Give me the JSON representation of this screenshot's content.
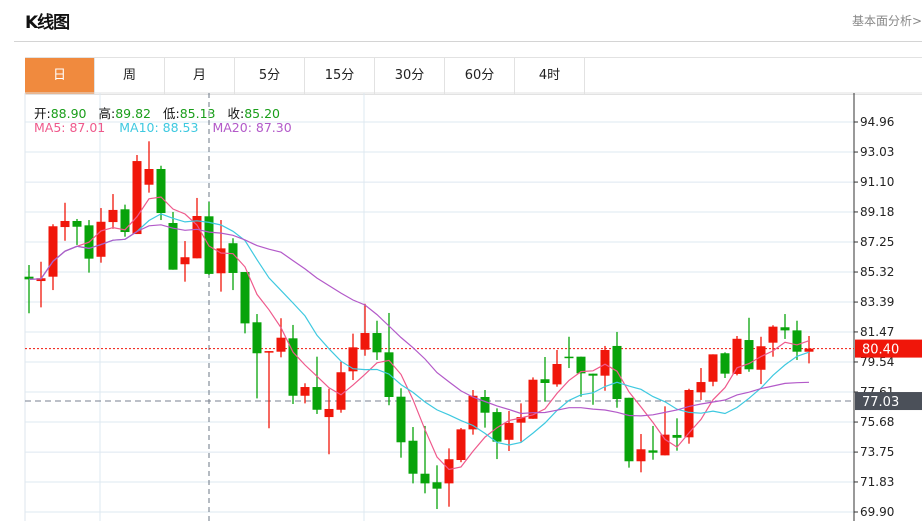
{
  "header": {
    "title": "K线图",
    "fundamental_link": "基本面分析>"
  },
  "tabs": [
    {
      "label": "日",
      "active": true
    },
    {
      "label": "周"
    },
    {
      "label": "月"
    },
    {
      "label": "5分"
    },
    {
      "label": "15分"
    },
    {
      "label": "30分"
    },
    {
      "label": "60分"
    },
    {
      "label": "4时"
    }
  ],
  "info": {
    "open_label": "开:",
    "open": "88.90",
    "high_label": "高:",
    "high": "89.82",
    "low_label": "低:",
    "low": "85.13",
    "close_label": "收:",
    "close": "85.20",
    "ma5": "MA5: 87.01",
    "ma10": "MA10: 88.53",
    "ma20": "MA20: 87.30"
  },
  "colors": {
    "up": "#f0160a",
    "down": "#08a30a",
    "ma5": "#ef5a8c",
    "ma10": "#3fc9e0",
    "ma20": "#b35ac9",
    "last_price": "#f0160a",
    "marker": "#4b5059"
  },
  "chart_data": {
    "type": "candlestick",
    "y_ticks": [
      "94.96",
      "93.03",
      "91.10",
      "89.18",
      "87.25",
      "85.32",
      "83.39",
      "81.47",
      "79.54",
      "77.61",
      "75.68",
      "73.75",
      "71.83",
      "69.90"
    ],
    "ylim": [
      69.9,
      94.96
    ],
    "grid": true,
    "moving_averages": [
      5,
      10,
      20
    ],
    "last_price": "80.40",
    "marker_price": "77.03",
    "crosshair_index": 15,
    "ohlc": [
      [
        85.02,
        85.77,
        82.67,
        84.85
      ],
      [
        84.74,
        85.98,
        83.05,
        84.92
      ],
      [
        85.02,
        88.39,
        84.16,
        88.26
      ],
      [
        88.21,
        89.77,
        87.33,
        88.6
      ],
      [
        88.6,
        88.73,
        87.06,
        88.23
      ],
      [
        88.32,
        88.66,
        85.28,
        86.18
      ],
      [
        86.3,
        89.43,
        85.92,
        88.55
      ],
      [
        88.53,
        90.33,
        88.1,
        89.31
      ],
      [
        89.35,
        89.65,
        87.59,
        87.89
      ],
      [
        87.76,
        92.84,
        87.76,
        92.45
      ],
      [
        90.93,
        93.72,
        90.42,
        91.94
      ],
      [
        91.94,
        92.15,
        88.66,
        89.11
      ],
      [
        88.47,
        89.18,
        85.47,
        85.47
      ],
      [
        85.82,
        87.31,
        84.7,
        86.27
      ],
      [
        86.2,
        90.08,
        86.2,
        88.92
      ],
      [
        88.9,
        89.82,
        85.13,
        85.2
      ],
      [
        85.24,
        88.66,
        84.06,
        86.84
      ],
      [
        87.17,
        87.49,
        84.16,
        85.26
      ],
      [
        85.32,
        85.32,
        81.38,
        82.02
      ],
      [
        82.09,
        82.62,
        77.2,
        80.1
      ],
      [
        80.14,
        80.24,
        75.28,
        80.24
      ],
      [
        80.2,
        82.35,
        79.84,
        81.1
      ],
      [
        81.06,
        81.92,
        76.84,
        77.37
      ],
      [
        77.37,
        78.17,
        76.88,
        77.93
      ],
      [
        77.93,
        79.88,
        76.2,
        76.47
      ],
      [
        76.0,
        77.82,
        73.61,
        76.52
      ],
      [
        76.47,
        79.56,
        76.28,
        78.88
      ],
      [
        78.94,
        81.36,
        78.38,
        80.48
      ],
      [
        80.33,
        83.28,
        79.94,
        81.4
      ],
      [
        81.4,
        82.19,
        79.67,
        80.16
      ],
      [
        80.16,
        82.69,
        76.76,
        77.29
      ],
      [
        77.31,
        77.85,
        73.39,
        74.38
      ],
      [
        74.48,
        75.36,
        71.74,
        72.36
      ],
      [
        72.36,
        75.43,
        71.1,
        71.74
      ],
      [
        71.81,
        72.9,
        70.09,
        71.4
      ],
      [
        71.74,
        73.99,
        70.24,
        73.29
      ],
      [
        73.24,
        75.3,
        73.1,
        75.21
      ],
      [
        75.21,
        77.74,
        74.87,
        77.37
      ],
      [
        77.29,
        77.74,
        75.32,
        76.28
      ],
      [
        76.32,
        76.56,
        73.3,
        74.42
      ],
      [
        74.54,
        76.39,
        73.82,
        75.62
      ],
      [
        75.64,
        76.88,
        74.42,
        76.0
      ],
      [
        75.89,
        78.55,
        75.89,
        78.4
      ],
      [
        78.43,
        79.86,
        76.99,
        78.19
      ],
      [
        78.1,
        80.31,
        77.95,
        79.41
      ],
      [
        79.88,
        81.16,
        79.15,
        79.79
      ],
      [
        79.88,
        79.88,
        77.31,
        78.81
      ],
      [
        78.79,
        78.79,
        76.79,
        78.66
      ],
      [
        78.66,
        80.57,
        77.69,
        80.31
      ],
      [
        80.57,
        81.47,
        76.6,
        77.16
      ],
      [
        77.24,
        77.24,
        72.75,
        73.16
      ],
      [
        73.16,
        74.91,
        72.45,
        73.93
      ],
      [
        73.86,
        75.43,
        73.26,
        73.71
      ],
      [
        73.54,
        76.69,
        73.54,
        74.87
      ],
      [
        74.85,
        75.92,
        73.84,
        74.67
      ],
      [
        74.7,
        77.82,
        74.29,
        77.74
      ],
      [
        77.59,
        79.15,
        77.1,
        78.25
      ],
      [
        78.27,
        80.03,
        77.98,
        80.03
      ],
      [
        80.1,
        80.16,
        78.51,
        78.79
      ],
      [
        78.77,
        81.21,
        78.68,
        81.03
      ],
      [
        80.95,
        82.38,
        78.91,
        79.07
      ],
      [
        79.04,
        81.16,
        78.12,
        80.55
      ],
      [
        80.78,
        81.9,
        79.88,
        81.81
      ],
      [
        81.77,
        82.62,
        81.02,
        81.57
      ],
      [
        81.57,
        82.19,
        79.67,
        80.2
      ],
      [
        80.2,
        81.21,
        79.45,
        80.4
      ]
    ]
  }
}
